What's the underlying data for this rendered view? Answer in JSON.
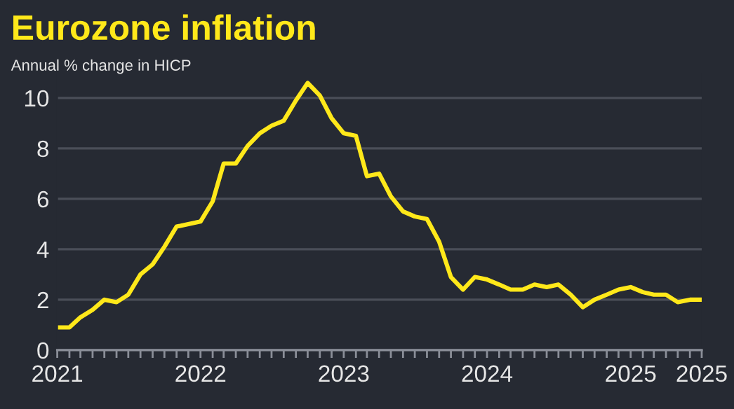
{
  "chart_data": {
    "type": "line",
    "title": "Eurozone inflation",
    "subtitle": "Annual % change in HICP",
    "x": [
      "2021-01",
      "2021-02",
      "2021-03",
      "2021-04",
      "2021-05",
      "2021-06",
      "2021-07",
      "2021-08",
      "2021-09",
      "2021-10",
      "2021-11",
      "2021-12",
      "2022-01",
      "2022-02",
      "2022-03",
      "2022-04",
      "2022-05",
      "2022-06",
      "2022-07",
      "2022-08",
      "2022-09",
      "2022-10",
      "2022-11",
      "2022-12",
      "2023-01",
      "2023-02",
      "2023-03",
      "2023-04",
      "2023-05",
      "2023-06",
      "2023-07",
      "2023-08",
      "2023-09",
      "2023-10",
      "2023-11",
      "2023-12",
      "2024-01",
      "2024-02",
      "2024-03",
      "2024-04",
      "2024-05",
      "2024-06",
      "2024-07",
      "2024-08",
      "2024-09",
      "2024-10",
      "2024-11",
      "2024-12",
      "2025-01",
      "2025-02",
      "2025-03",
      "2025-04",
      "2025-05",
      "2025-06",
      "2025-07"
    ],
    "series": [
      {
        "color": "#ffe81a",
        "values": [
          0.9,
          0.9,
          1.3,
          1.6,
          2.0,
          1.9,
          2.2,
          3.0,
          3.4,
          4.1,
          4.9,
          5.0,
          5.1,
          5.9,
          7.4,
          7.4,
          8.1,
          8.6,
          8.9,
          9.1,
          9.9,
          10.6,
          10.1,
          9.2,
          8.6,
          8.5,
          6.9,
          7.0,
          6.1,
          5.5,
          5.3,
          5.2,
          4.3,
          2.9,
          2.4,
          2.9,
          2.8,
          2.6,
          2.4,
          2.4,
          2.6,
          2.5,
          2.6,
          2.2,
          1.7,
          2.0,
          2.2,
          2.4,
          2.5,
          2.3,
          2.2,
          2.2,
          1.9,
          2.0,
          2.0
        ]
      }
    ],
    "xlim": [
      "2021-01",
      "2025-07"
    ],
    "xticks": [
      {
        "value": "2021-01",
        "label": "2021"
      },
      {
        "value": "2021-02",
        "label": null
      },
      {
        "value": "2021-03",
        "label": null
      },
      {
        "value": "2021-04",
        "label": null
      },
      {
        "value": "2021-05",
        "label": null
      },
      {
        "value": "2021-06",
        "label": null
      },
      {
        "value": "2021-07",
        "label": null
      },
      {
        "value": "2021-08",
        "label": null
      },
      {
        "value": "2021-09",
        "label": null
      },
      {
        "value": "2021-10",
        "label": null
      },
      {
        "value": "2021-11",
        "label": null
      },
      {
        "value": "2021-12",
        "label": null
      },
      {
        "value": "2022-01",
        "label": "2022"
      },
      {
        "value": "2022-02",
        "label": null
      },
      {
        "value": "2022-03",
        "label": null
      },
      {
        "value": "2022-04",
        "label": null
      },
      {
        "value": "2022-05",
        "label": null
      },
      {
        "value": "2022-06",
        "label": null
      },
      {
        "value": "2022-07",
        "label": null
      },
      {
        "value": "2022-08",
        "label": null
      },
      {
        "value": "2022-09",
        "label": null
      },
      {
        "value": "2022-10",
        "label": null
      },
      {
        "value": "2022-11",
        "label": null
      },
      {
        "value": "2022-12",
        "label": null
      },
      {
        "value": "2023-01",
        "label": "2023"
      },
      {
        "value": "2023-02",
        "label": null
      },
      {
        "value": "2023-03",
        "label": null
      },
      {
        "value": "2023-04",
        "label": null
      },
      {
        "value": "2023-05",
        "label": null
      },
      {
        "value": "2023-06",
        "label": null
      },
      {
        "value": "2023-07",
        "label": null
      },
      {
        "value": "2023-08",
        "label": null
      },
      {
        "value": "2023-09",
        "label": null
      },
      {
        "value": "2023-10",
        "label": null
      },
      {
        "value": "2023-11",
        "label": null
      },
      {
        "value": "2023-12",
        "label": null
      },
      {
        "value": "2024-01",
        "label": "2024"
      },
      {
        "value": "2024-02",
        "label": null
      },
      {
        "value": "2024-03",
        "label": null
      },
      {
        "value": "2024-04",
        "label": null
      },
      {
        "value": "2024-05",
        "label": null
      },
      {
        "value": "2024-06",
        "label": null
      },
      {
        "value": "2024-07",
        "label": null
      },
      {
        "value": "2024-08",
        "label": null
      },
      {
        "value": "2024-09",
        "label": null
      },
      {
        "value": "2024-10",
        "label": null
      },
      {
        "value": "2024-11",
        "label": null
      },
      {
        "value": "2024-12",
        "label": null
      },
      {
        "value": "2025-01",
        "label": "2025"
      },
      {
        "value": "2025-02",
        "label": null
      },
      {
        "value": "2025-03",
        "label": null
      },
      {
        "value": "2025-04",
        "label": null
      },
      {
        "value": "2025-05",
        "label": null
      },
      {
        "value": "2025-06",
        "label": null
      },
      {
        "value": "2025-07",
        "label": "2025"
      }
    ],
    "ylim": [
      0,
      11
    ],
    "yticks": [
      0,
      2,
      4,
      6,
      8,
      10
    ],
    "grid": "y",
    "marker": "none",
    "line_style": "solid"
  }
}
